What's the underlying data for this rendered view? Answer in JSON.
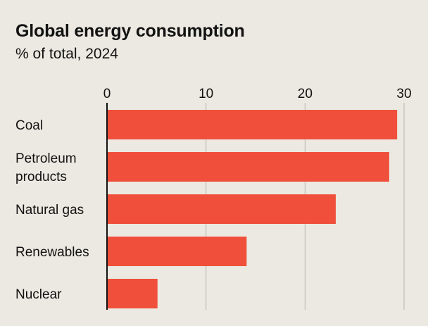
{
  "chart_data": {
    "type": "bar",
    "orientation": "horizontal",
    "title": "Global energy consumption",
    "subtitle": "% of total, 2024",
    "categories": [
      "Coal",
      "Petroleum products",
      "Natural gas",
      "Renewables",
      "Nuclear"
    ],
    "category_lines": [
      [
        "Coal"
      ],
      [
        "Petroleum",
        "products"
      ],
      [
        "Natural gas"
      ],
      [
        "Renewables"
      ],
      [
        "Nuclear"
      ]
    ],
    "values": [
      29.3,
      28.5,
      23.1,
      14.1,
      5.1
    ],
    "xlim": [
      0,
      30
    ],
    "ticks": [
      0,
      10,
      20,
      30
    ],
    "tick_labels": [
      "0",
      "10",
      "20",
      "30"
    ],
    "grid": true,
    "colors": {
      "bar": "#f0503b",
      "grid": "#b7b5ad",
      "axis": "#121212",
      "background": "#ebe9e1"
    }
  }
}
